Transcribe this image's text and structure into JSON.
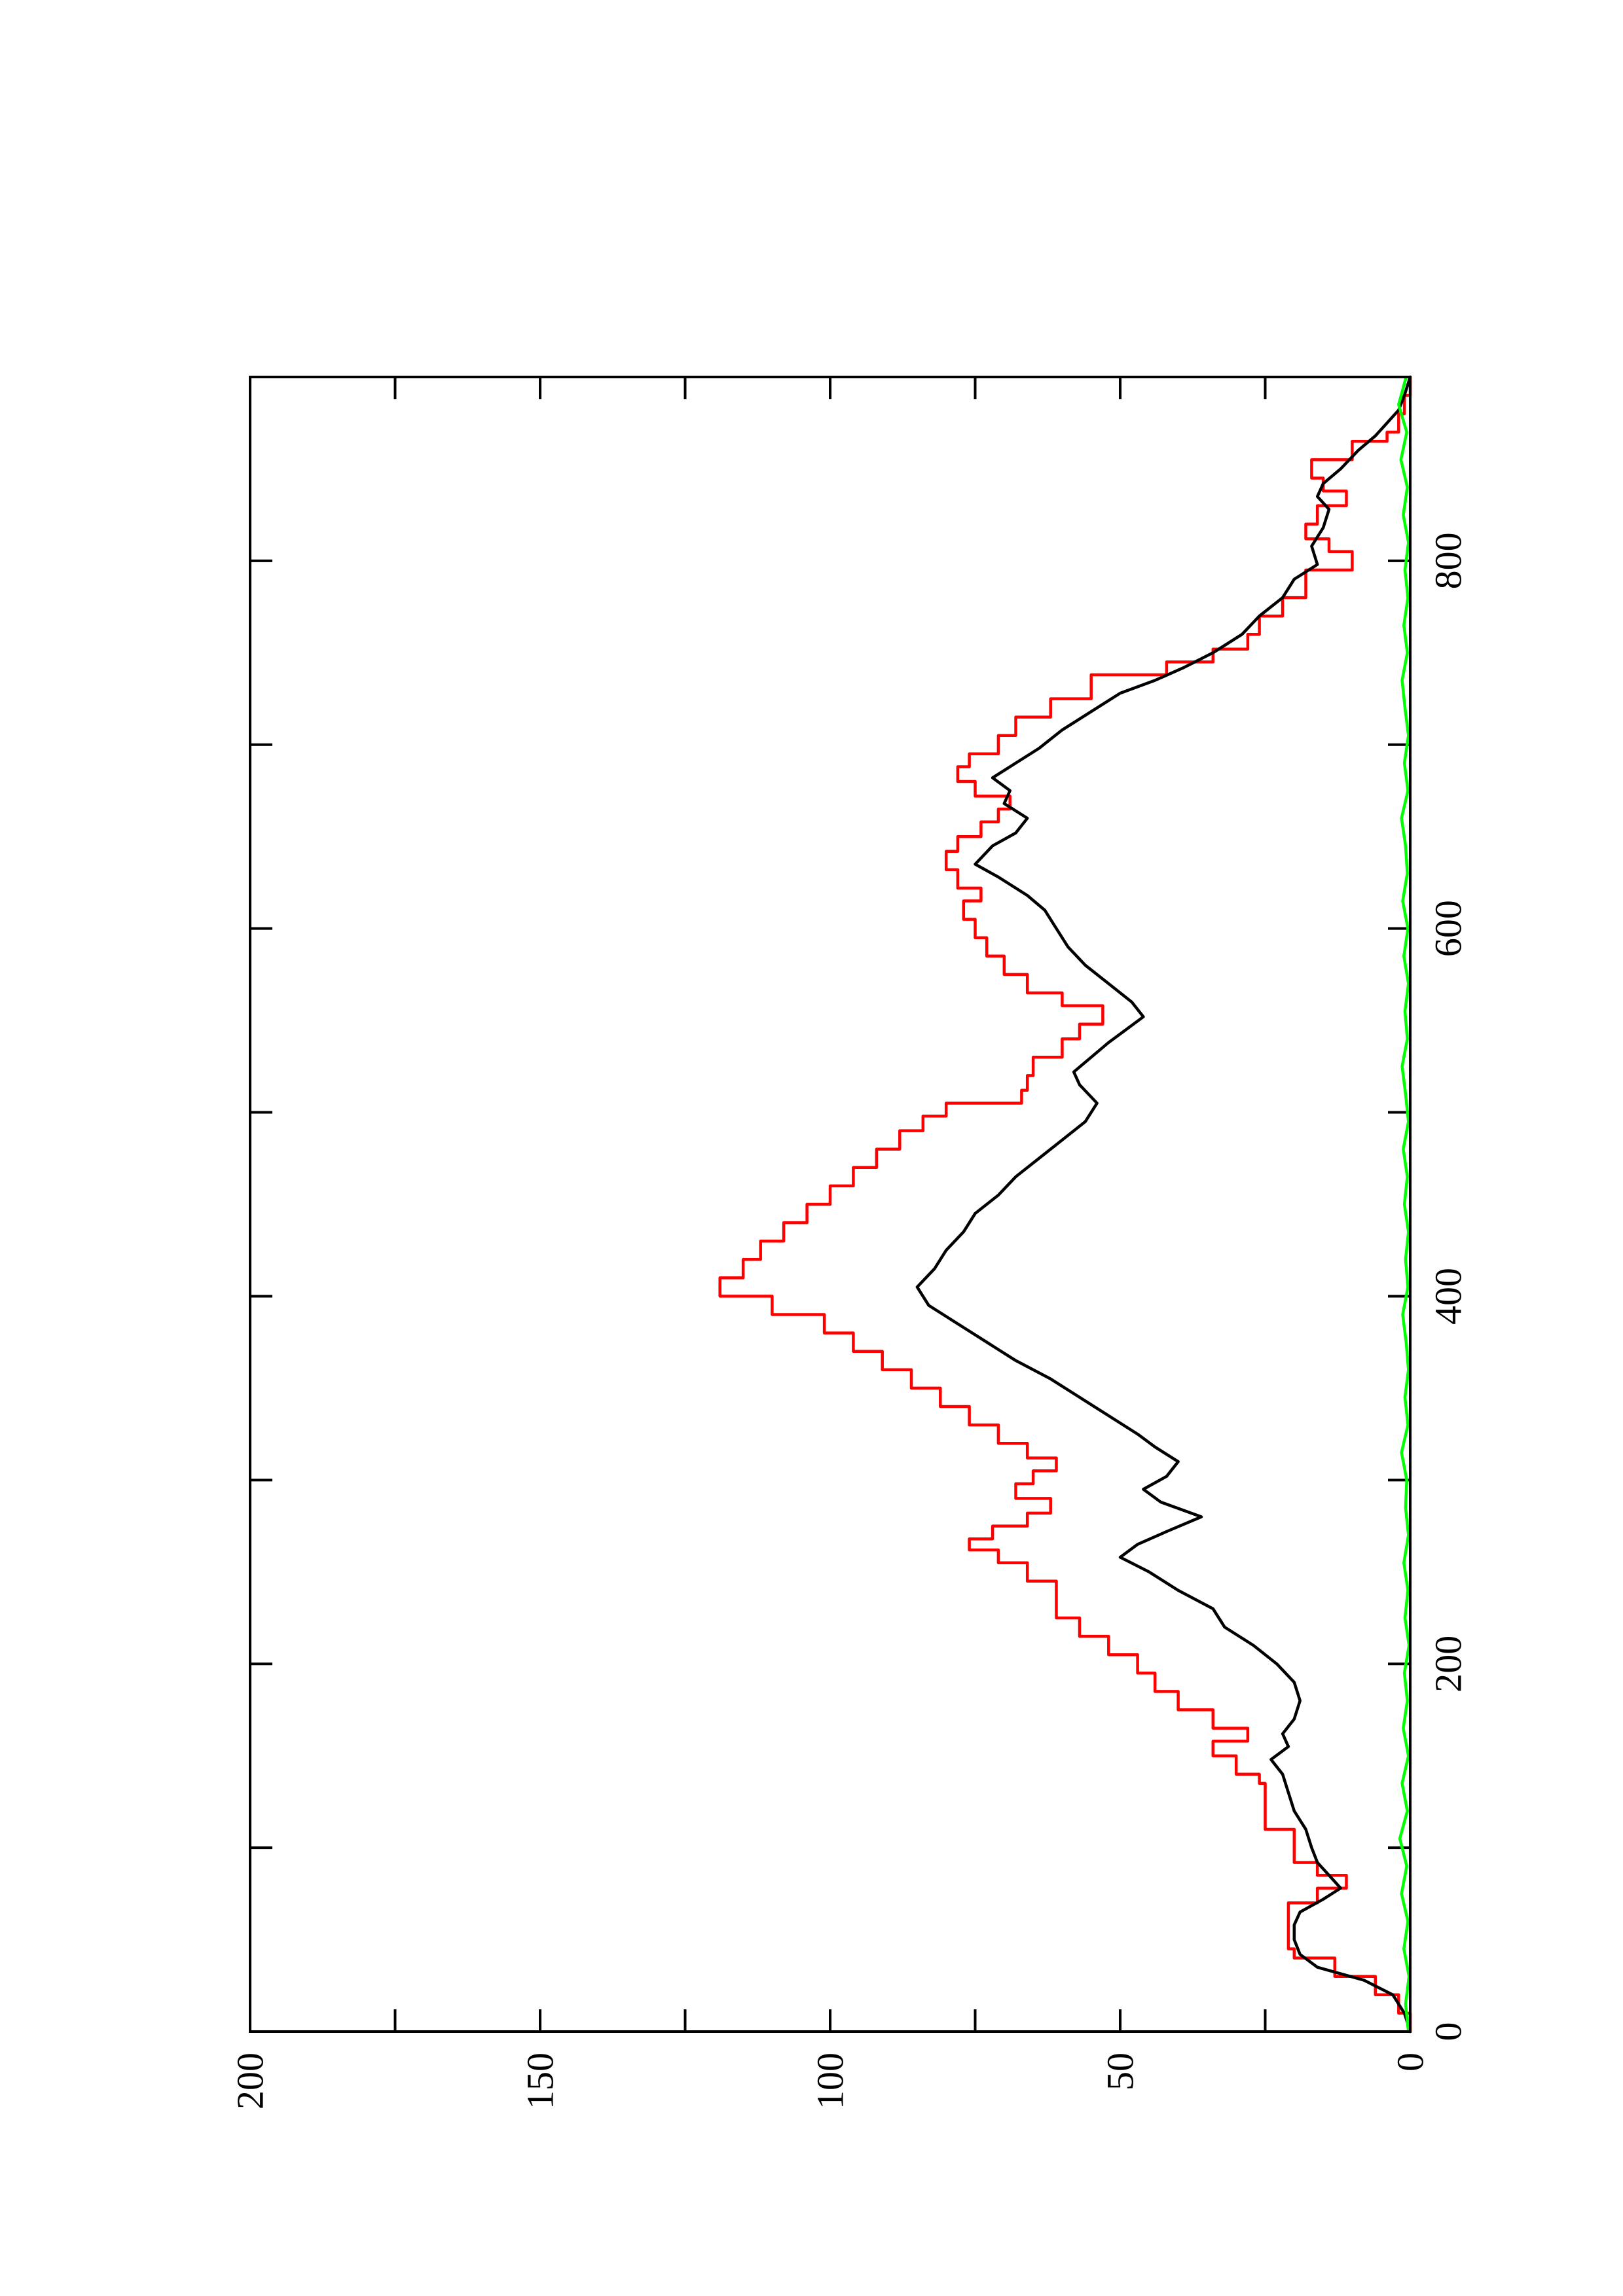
{
  "chart_data": {
    "type": "line",
    "orientation": "rotated 90 degrees counter-clockwise",
    "title": "",
    "xlabel": "",
    "ylabel": "",
    "xlim": [
      0,
      900
    ],
    "ylim": [
      0,
      200
    ],
    "grid": false,
    "x_ticks": [
      0,
      200,
      400,
      600,
      800
    ],
    "x_minor_ticks": [
      100,
      300,
      500,
      700
    ],
    "y_ticks": [
      0,
      50,
      100,
      150,
      200
    ],
    "y_minor_ticks": [
      25,
      75,
      125,
      175
    ],
    "x_tick_labels": [
      "0",
      "200",
      "400",
      "600",
      "800"
    ],
    "y_tick_labels": [
      "0",
      "50",
      "100",
      "150",
      "200"
    ],
    "series": [
      {
        "color": "#ff0000",
        "step": true,
        "points": [
          [
            0,
            0
          ],
          [
            10,
            2
          ],
          [
            20,
            6
          ],
          [
            30,
            13
          ],
          [
            40,
            20
          ],
          [
            45,
            21
          ],
          [
            55,
            21
          ],
          [
            62,
            21
          ],
          [
            70,
            16
          ],
          [
            78,
            11
          ],
          [
            85,
            16
          ],
          [
            92,
            20
          ],
          [
            100,
            20
          ],
          [
            110,
            25
          ],
          [
            120,
            25
          ],
          [
            135,
            26
          ],
          [
            140,
            30
          ],
          [
            150,
            34
          ],
          [
            158,
            28
          ],
          [
            165,
            34
          ],
          [
            175,
            40
          ],
          [
            185,
            44
          ],
          [
            195,
            47
          ],
          [
            205,
            52
          ],
          [
            215,
            57
          ],
          [
            225,
            61
          ],
          [
            235,
            61
          ],
          [
            245,
            66
          ],
          [
            255,
            71
          ],
          [
            262,
            76
          ],
          [
            268,
            72
          ],
          [
            275,
            66
          ],
          [
            282,
            62
          ],
          [
            290,
            68
          ],
          [
            298,
            65
          ],
          [
            305,
            61
          ],
          [
            312,
            66
          ],
          [
            320,
            71
          ],
          [
            330,
            76
          ],
          [
            340,
            81
          ],
          [
            350,
            86
          ],
          [
            360,
            91
          ],
          [
            370,
            96
          ],
          [
            380,
            101
          ],
          [
            390,
            110
          ],
          [
            400,
            119
          ],
          [
            410,
            115
          ],
          [
            420,
            112
          ],
          [
            430,
            108
          ],
          [
            440,
            104
          ],
          [
            450,
            100
          ],
          [
            460,
            96
          ],
          [
            470,
            92
          ],
          [
            480,
            88
          ],
          [
            490,
            84
          ],
          [
            498,
            80
          ],
          [
            505,
            67
          ],
          [
            512,
            66
          ],
          [
            520,
            65
          ],
          [
            530,
            60
          ],
          [
            540,
            57
          ],
          [
            548,
            53
          ],
          [
            558,
            60
          ],
          [
            565,
            66
          ],
          [
            575,
            70
          ],
          [
            585,
            73
          ],
          [
            595,
            75
          ],
          [
            605,
            77
          ],
          [
            615,
            74
          ],
          [
            622,
            78
          ],
          [
            632,
            80
          ],
          [
            642,
            78
          ],
          [
            650,
            74
          ],
          [
            658,
            71
          ],
          [
            665,
            69
          ],
          [
            672,
            75
          ],
          [
            680,
            78
          ],
          [
            688,
            76
          ],
          [
            695,
            71
          ],
          [
            705,
            68
          ],
          [
            715,
            62
          ],
          [
            725,
            55
          ],
          [
            738,
            42
          ],
          [
            745,
            34
          ],
          [
            752,
            28
          ],
          [
            760,
            26
          ],
          [
            770,
            22
          ],
          [
            780,
            18
          ],
          [
            795,
            10
          ],
          [
            805,
            14
          ],
          [
            812,
            18
          ],
          [
            820,
            16
          ],
          [
            830,
            11
          ],
          [
            838,
            15
          ],
          [
            845,
            17
          ],
          [
            855,
            10
          ],
          [
            865,
            4
          ],
          [
            870,
            2
          ],
          [
            880,
            1
          ],
          [
            890,
            0
          ],
          [
            900,
            0
          ]
        ]
      },
      {
        "color": "#000000",
        "step": false,
        "points": [
          [
            0,
            0
          ],
          [
            10,
            1
          ],
          [
            20,
            3
          ],
          [
            28,
            8
          ],
          [
            35,
            16
          ],
          [
            42,
            19
          ],
          [
            50,
            20
          ],
          [
            58,
            20
          ],
          [
            65,
            19
          ],
          [
            72,
            15
          ],
          [
            78,
            12
          ],
          [
            85,
            14
          ],
          [
            92,
            16
          ],
          [
            100,
            17
          ],
          [
            110,
            18
          ],
          [
            120,
            20
          ],
          [
            130,
            21
          ],
          [
            140,
            22
          ],
          [
            148,
            24
          ],
          [
            155,
            21
          ],
          [
            162,
            22
          ],
          [
            170,
            20
          ],
          [
            180,
            19
          ],
          [
            190,
            20
          ],
          [
            200,
            23
          ],
          [
            210,
            27
          ],
          [
            220,
            32
          ],
          [
            230,
            34
          ],
          [
            240,
            40
          ],
          [
            250,
            45
          ],
          [
            258,
            50
          ],
          [
            265,
            47
          ],
          [
            272,
            42
          ],
          [
            280,
            36
          ],
          [
            288,
            43
          ],
          [
            295,
            46
          ],
          [
            302,
            42
          ],
          [
            310,
            40
          ],
          [
            318,
            44
          ],
          [
            325,
            47
          ],
          [
            335,
            52
          ],
          [
            345,
            57
          ],
          [
            355,
            62
          ],
          [
            365,
            68
          ],
          [
            375,
            73
          ],
          [
            385,
            78
          ],
          [
            395,
            83
          ],
          [
            405,
            85
          ],
          [
            415,
            82
          ],
          [
            425,
            80
          ],
          [
            435,
            77
          ],
          [
            445,
            75
          ],
          [
            455,
            71
          ],
          [
            465,
            68
          ],
          [
            475,
            64
          ],
          [
            485,
            60
          ],
          [
            495,
            56
          ],
          [
            505,
            54
          ],
          [
            515,
            57
          ],
          [
            522,
            58
          ],
          [
            530,
            55
          ],
          [
            538,
            52
          ],
          [
            545,
            49
          ],
          [
            552,
            46
          ],
          [
            560,
            48
          ],
          [
            570,
            52
          ],
          [
            580,
            56
          ],
          [
            590,
            59
          ],
          [
            600,
            61
          ],
          [
            610,
            63
          ],
          [
            618,
            66
          ],
          [
            628,
            71
          ],
          [
            635,
            75
          ],
          [
            645,
            72
          ],
          [
            652,
            68
          ],
          [
            660,
            66
          ],
          [
            668,
            70
          ],
          [
            675,
            69
          ],
          [
            682,
            72
          ],
          [
            690,
            68
          ],
          [
            698,
            64
          ],
          [
            708,
            60
          ],
          [
            718,
            55
          ],
          [
            728,
            50
          ],
          [
            735,
            44
          ],
          [
            742,
            39
          ],
          [
            750,
            34
          ],
          [
            760,
            29
          ],
          [
            770,
            26
          ],
          [
            780,
            22
          ],
          [
            790,
            20
          ],
          [
            798,
            16
          ],
          [
            808,
            17
          ],
          [
            818,
            15
          ],
          [
            828,
            14
          ],
          [
            835,
            16
          ],
          [
            842,
            15
          ],
          [
            850,
            12
          ],
          [
            860,
            9
          ],
          [
            868,
            6
          ],
          [
            875,
            4
          ],
          [
            882,
            2
          ],
          [
            890,
            1
          ],
          [
            900,
            0
          ]
        ]
      },
      {
        "color": "#00ff00",
        "step": false,
        "points": [
          [
            0,
            0.3
          ],
          [
            15,
            0.8
          ],
          [
            30,
            0.2
          ],
          [
            45,
            1.1
          ],
          [
            60,
            0.4
          ],
          [
            75,
            1.5
          ],
          [
            90,
            0.6
          ],
          [
            105,
            1.8
          ],
          [
            120,
            0.5
          ],
          [
            135,
            1.4
          ],
          [
            150,
            0.3
          ],
          [
            165,
            1.2
          ],
          [
            180,
            0.5
          ],
          [
            195,
            1.0
          ],
          [
            210,
            0.2
          ],
          [
            225,
            0.9
          ],
          [
            240,
            0.4
          ],
          [
            255,
            1.1
          ],
          [
            270,
            0.3
          ],
          [
            285,
            0.8
          ],
          [
            300,
            0.6
          ],
          [
            315,
            1.5
          ],
          [
            330,
            0.4
          ],
          [
            345,
            0.9
          ],
          [
            360,
            0.3
          ],
          [
            375,
            0.7
          ],
          [
            390,
            1.3
          ],
          [
            405,
            0.4
          ],
          [
            420,
            0.8
          ],
          [
            435,
            0.3
          ],
          [
            450,
            1.0
          ],
          [
            465,
            0.5
          ],
          [
            480,
            1.2
          ],
          [
            495,
            0.3
          ],
          [
            510,
            0.8
          ],
          [
            525,
            1.4
          ],
          [
            540,
            0.5
          ],
          [
            555,
            0.9
          ],
          [
            570,
            0.3
          ],
          [
            585,
            1.1
          ],
          [
            600,
            0.4
          ],
          [
            615,
            1.3
          ],
          [
            630,
            0.5
          ],
          [
            645,
            0.8
          ],
          [
            660,
            1.5
          ],
          [
            675,
            0.4
          ],
          [
            690,
            1.0
          ],
          [
            705,
            0.3
          ],
          [
            720,
            0.9
          ],
          [
            735,
            1.4
          ],
          [
            750,
            0.5
          ],
          [
            765,
            1.1
          ],
          [
            780,
            0.4
          ],
          [
            795,
            0.9
          ],
          [
            810,
            0.3
          ],
          [
            825,
            1.2
          ],
          [
            840,
            0.5
          ],
          [
            855,
            1.6
          ],
          [
            870,
            0.6
          ],
          [
            885,
            2.0
          ],
          [
            900,
            0.7
          ]
        ]
      }
    ]
  }
}
